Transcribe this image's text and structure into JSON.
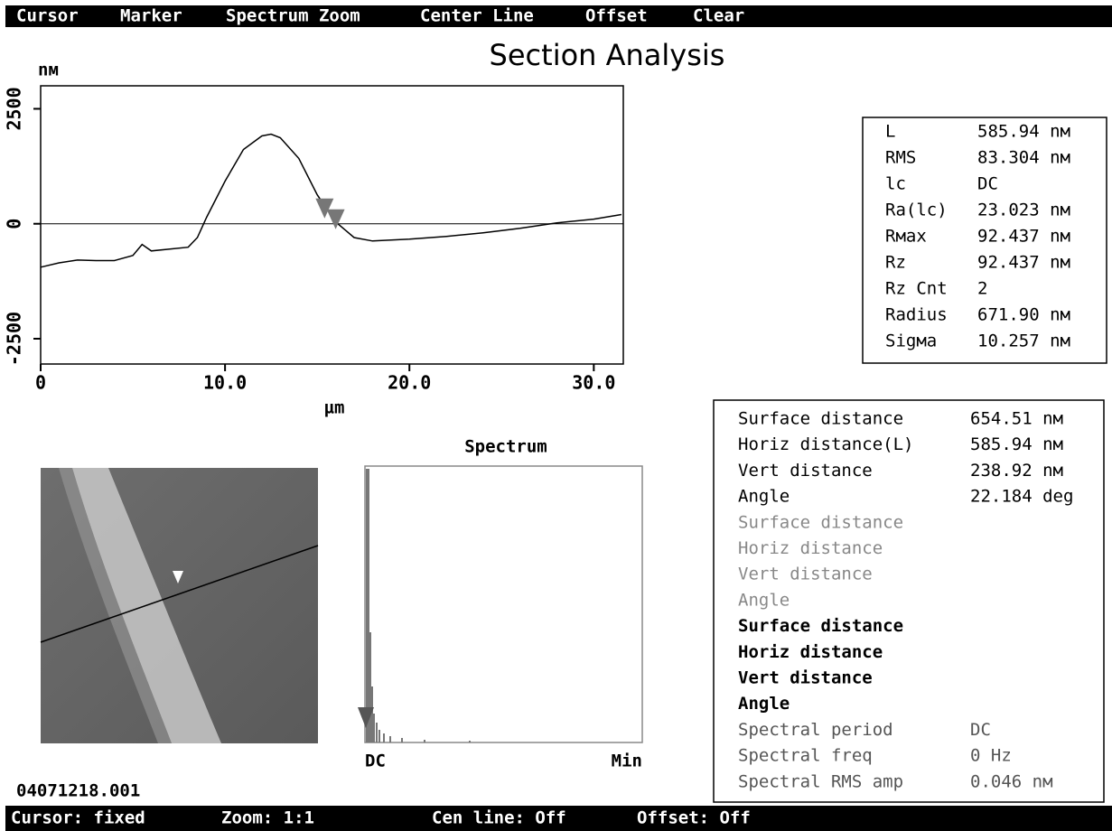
{
  "menu": [
    "Cursor",
    "Marker",
    "Spectrum Zoom",
    "Center Line",
    "Offset",
    "Clear"
  ],
  "title": "Section Analysis",
  "chart_data": {
    "type": "line",
    "ylabel": "nм",
    "xlabel": "µm",
    "color": "#000000",
    "zero_line": true,
    "x": [
      0,
      1,
      2,
      3,
      4,
      5,
      5.5,
      6,
      7,
      8,
      8.5,
      9,
      10,
      11,
      12,
      12.5,
      13,
      14,
      15,
      16,
      17,
      18,
      20,
      22,
      24,
      26,
      28,
      30,
      31.5
    ],
    "values": [
      -945,
      -850,
      -790,
      -800,
      -800,
      -690,
      -450,
      -590,
      -550,
      -510,
      -300,
      140,
      925,
      1615,
      1910,
      1950,
      1870,
      1420,
      630,
      40,
      -300,
      -375,
      -335,
      -275,
      -195,
      -100,
      20,
      100,
      200
    ],
    "xlim": [
      0,
      31.6
    ],
    "ylim": [
      -3050,
      3000
    ],
    "xticks": [
      0,
      {
        "value": 10,
        "label": "10.0"
      },
      {
        "value": 20,
        "label": "20.0"
      },
      {
        "value": 30,
        "label": "30.0"
      }
    ],
    "yticks": [
      2500,
      0,
      -2500
    ],
    "cursors": [
      15.4,
      16.0
    ],
    "cursor_color": "#777777"
  },
  "stats": [
    [
      "L",
      "585.94 nм"
    ],
    [
      "RMS",
      "83.304 nм"
    ],
    [
      "lc",
      "DC"
    ],
    [
      "Ra(lc)",
      "23.023 nм"
    ],
    [
      "Rмax",
      "92.437 nм"
    ],
    [
      "Rz",
      "92.437 nм"
    ],
    [
      "Rz Cnt",
      "2"
    ],
    [
      "Radius",
      "671.90 nм"
    ],
    [
      "Sigмa",
      "10.257 nм"
    ]
  ],
  "spectrum": {
    "title": "Spectrum",
    "left_label": "DC",
    "right_label": "Min"
  },
  "filename": "04071218.001",
  "measurements": [
    [
      "Surface distance",
      "654.51 nм"
    ],
    [
      "Horiz distance(L)",
      "585.94 nм"
    ],
    [
      "Vert distance",
      "238.92 nм"
    ],
    [
      "Angle",
      "22.184 deg"
    ],
    [
      "Surface distance",
      ""
    ],
    [
      "Horiz distance",
      ""
    ],
    [
      "Vert distance",
      ""
    ],
    [
      "Angle",
      ""
    ],
    [
      "Surface distance",
      ""
    ],
    [
      "Horiz distance",
      ""
    ],
    [
      "Vert distance",
      ""
    ],
    [
      "Angle",
      ""
    ],
    [
      "Spectral period",
      "DC"
    ],
    [
      "Spectral freq",
      "0 Hz"
    ],
    [
      "Spectral RMS amp",
      "0.046 nм"
    ]
  ],
  "status": [
    "Cursor: fixed",
    "Zoom: 1:1",
    "Cen line: Off",
    "Offset: Off"
  ]
}
